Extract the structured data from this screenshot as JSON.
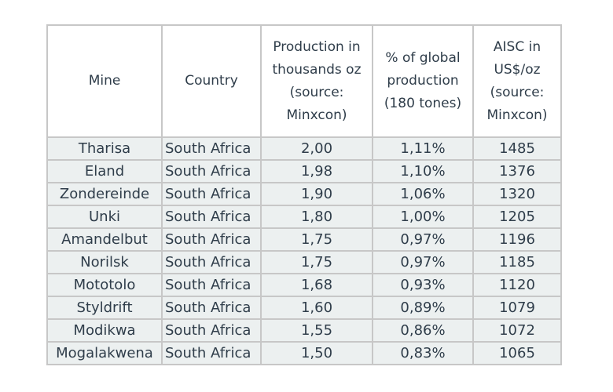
{
  "table": {
    "headers": [
      [
        "Mine"
      ],
      [
        "Country"
      ],
      [
        "Production in",
        "thousands oz",
        "(source:",
        "Minxcon)"
      ],
      [
        "% of global",
        "production",
        "(180 tones)"
      ],
      [
        "AISC in",
        "US$/oz",
        "(source:",
        "Minxcon)"
      ]
    ],
    "rows": [
      [
        "Tharisa",
        "South Africa",
        "2,00",
        "1,11%",
        "1485"
      ],
      [
        "Eland",
        "South Africa",
        "1,98",
        "1,10%",
        "1376"
      ],
      [
        "Zondereinde",
        "South Africa",
        "1,90",
        "1,06%",
        "1320"
      ],
      [
        "Unki",
        "South Africa",
        "1,80",
        "1,00%",
        "1205"
      ],
      [
        "Amandelbut",
        "South Africa",
        "1,75",
        "0,97%",
        "1196"
      ],
      [
        "Norilsk",
        "South Africa",
        "1,75",
        "0,97%",
        "1185"
      ],
      [
        "Mototolo",
        "South Africa",
        "1,68",
        "0,93%",
        "1120"
      ],
      [
        "Styldrift",
        "South Africa",
        "1,60",
        "0,89%",
        "1079"
      ],
      [
        "Modikwa",
        "South Africa",
        "1,55",
        "0,86%",
        "1072"
      ],
      [
        "Mogalakwena",
        "South Africa",
        "1,50",
        "0,83%",
        "1065"
      ]
    ]
  }
}
